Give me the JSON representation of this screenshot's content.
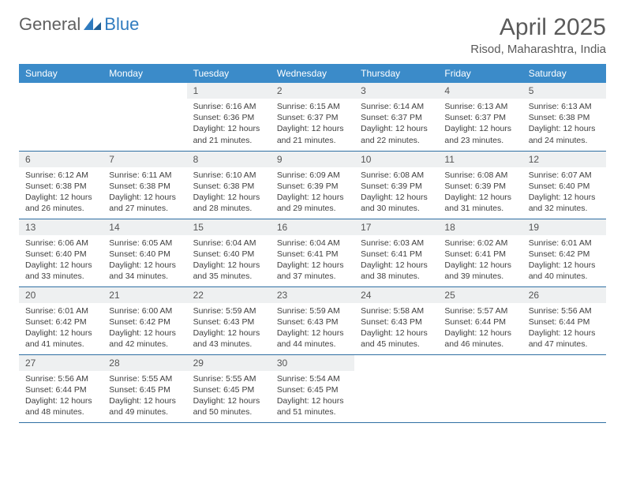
{
  "brand": {
    "part1": "General",
    "part2": "Blue"
  },
  "title": "April 2025",
  "location": "Risod, Maharashtra, India",
  "colors": {
    "header_bg": "#3b8bc9",
    "header_text": "#ffffff",
    "row_divider": "#2f6fa3",
    "daynum_bg": "#eef0f1",
    "text": "#404040",
    "title_text": "#5a5a5a",
    "logo_gray": "#606060",
    "logo_blue": "#2f7bbf",
    "page_bg": "#ffffff"
  },
  "typography": {
    "title_fontsize": 30,
    "location_fontsize": 15,
    "header_fontsize": 12,
    "daynum_fontsize": 12,
    "body_fontsize": 10.5
  },
  "weekdays": [
    "Sunday",
    "Monday",
    "Tuesday",
    "Wednesday",
    "Thursday",
    "Friday",
    "Saturday"
  ],
  "weeks": [
    [
      {
        "empty": true
      },
      {
        "empty": true
      },
      {
        "day": "1",
        "sunrise": "Sunrise: 6:16 AM",
        "sunset": "Sunset: 6:36 PM",
        "daylight1": "Daylight: 12 hours",
        "daylight2": "and 21 minutes."
      },
      {
        "day": "2",
        "sunrise": "Sunrise: 6:15 AM",
        "sunset": "Sunset: 6:37 PM",
        "daylight1": "Daylight: 12 hours",
        "daylight2": "and 21 minutes."
      },
      {
        "day": "3",
        "sunrise": "Sunrise: 6:14 AM",
        "sunset": "Sunset: 6:37 PM",
        "daylight1": "Daylight: 12 hours",
        "daylight2": "and 22 minutes."
      },
      {
        "day": "4",
        "sunrise": "Sunrise: 6:13 AM",
        "sunset": "Sunset: 6:37 PM",
        "daylight1": "Daylight: 12 hours",
        "daylight2": "and 23 minutes."
      },
      {
        "day": "5",
        "sunrise": "Sunrise: 6:13 AM",
        "sunset": "Sunset: 6:38 PM",
        "daylight1": "Daylight: 12 hours",
        "daylight2": "and 24 minutes."
      }
    ],
    [
      {
        "day": "6",
        "sunrise": "Sunrise: 6:12 AM",
        "sunset": "Sunset: 6:38 PM",
        "daylight1": "Daylight: 12 hours",
        "daylight2": "and 26 minutes."
      },
      {
        "day": "7",
        "sunrise": "Sunrise: 6:11 AM",
        "sunset": "Sunset: 6:38 PM",
        "daylight1": "Daylight: 12 hours",
        "daylight2": "and 27 minutes."
      },
      {
        "day": "8",
        "sunrise": "Sunrise: 6:10 AM",
        "sunset": "Sunset: 6:38 PM",
        "daylight1": "Daylight: 12 hours",
        "daylight2": "and 28 minutes."
      },
      {
        "day": "9",
        "sunrise": "Sunrise: 6:09 AM",
        "sunset": "Sunset: 6:39 PM",
        "daylight1": "Daylight: 12 hours",
        "daylight2": "and 29 minutes."
      },
      {
        "day": "10",
        "sunrise": "Sunrise: 6:08 AM",
        "sunset": "Sunset: 6:39 PM",
        "daylight1": "Daylight: 12 hours",
        "daylight2": "and 30 minutes."
      },
      {
        "day": "11",
        "sunrise": "Sunrise: 6:08 AM",
        "sunset": "Sunset: 6:39 PM",
        "daylight1": "Daylight: 12 hours",
        "daylight2": "and 31 minutes."
      },
      {
        "day": "12",
        "sunrise": "Sunrise: 6:07 AM",
        "sunset": "Sunset: 6:40 PM",
        "daylight1": "Daylight: 12 hours",
        "daylight2": "and 32 minutes."
      }
    ],
    [
      {
        "day": "13",
        "sunrise": "Sunrise: 6:06 AM",
        "sunset": "Sunset: 6:40 PM",
        "daylight1": "Daylight: 12 hours",
        "daylight2": "and 33 minutes."
      },
      {
        "day": "14",
        "sunrise": "Sunrise: 6:05 AM",
        "sunset": "Sunset: 6:40 PM",
        "daylight1": "Daylight: 12 hours",
        "daylight2": "and 34 minutes."
      },
      {
        "day": "15",
        "sunrise": "Sunrise: 6:04 AM",
        "sunset": "Sunset: 6:40 PM",
        "daylight1": "Daylight: 12 hours",
        "daylight2": "and 35 minutes."
      },
      {
        "day": "16",
        "sunrise": "Sunrise: 6:04 AM",
        "sunset": "Sunset: 6:41 PM",
        "daylight1": "Daylight: 12 hours",
        "daylight2": "and 37 minutes."
      },
      {
        "day": "17",
        "sunrise": "Sunrise: 6:03 AM",
        "sunset": "Sunset: 6:41 PM",
        "daylight1": "Daylight: 12 hours",
        "daylight2": "and 38 minutes."
      },
      {
        "day": "18",
        "sunrise": "Sunrise: 6:02 AM",
        "sunset": "Sunset: 6:41 PM",
        "daylight1": "Daylight: 12 hours",
        "daylight2": "and 39 minutes."
      },
      {
        "day": "19",
        "sunrise": "Sunrise: 6:01 AM",
        "sunset": "Sunset: 6:42 PM",
        "daylight1": "Daylight: 12 hours",
        "daylight2": "and 40 minutes."
      }
    ],
    [
      {
        "day": "20",
        "sunrise": "Sunrise: 6:01 AM",
        "sunset": "Sunset: 6:42 PM",
        "daylight1": "Daylight: 12 hours",
        "daylight2": "and 41 minutes."
      },
      {
        "day": "21",
        "sunrise": "Sunrise: 6:00 AM",
        "sunset": "Sunset: 6:42 PM",
        "daylight1": "Daylight: 12 hours",
        "daylight2": "and 42 minutes."
      },
      {
        "day": "22",
        "sunrise": "Sunrise: 5:59 AM",
        "sunset": "Sunset: 6:43 PM",
        "daylight1": "Daylight: 12 hours",
        "daylight2": "and 43 minutes."
      },
      {
        "day": "23",
        "sunrise": "Sunrise: 5:59 AM",
        "sunset": "Sunset: 6:43 PM",
        "daylight1": "Daylight: 12 hours",
        "daylight2": "and 44 minutes."
      },
      {
        "day": "24",
        "sunrise": "Sunrise: 5:58 AM",
        "sunset": "Sunset: 6:43 PM",
        "daylight1": "Daylight: 12 hours",
        "daylight2": "and 45 minutes."
      },
      {
        "day": "25",
        "sunrise": "Sunrise: 5:57 AM",
        "sunset": "Sunset: 6:44 PM",
        "daylight1": "Daylight: 12 hours",
        "daylight2": "and 46 minutes."
      },
      {
        "day": "26",
        "sunrise": "Sunrise: 5:56 AM",
        "sunset": "Sunset: 6:44 PM",
        "daylight1": "Daylight: 12 hours",
        "daylight2": "and 47 minutes."
      }
    ],
    [
      {
        "day": "27",
        "sunrise": "Sunrise: 5:56 AM",
        "sunset": "Sunset: 6:44 PM",
        "daylight1": "Daylight: 12 hours",
        "daylight2": "and 48 minutes."
      },
      {
        "day": "28",
        "sunrise": "Sunrise: 5:55 AM",
        "sunset": "Sunset: 6:45 PM",
        "daylight1": "Daylight: 12 hours",
        "daylight2": "and 49 minutes."
      },
      {
        "day": "29",
        "sunrise": "Sunrise: 5:55 AM",
        "sunset": "Sunset: 6:45 PM",
        "daylight1": "Daylight: 12 hours",
        "daylight2": "and 50 minutes."
      },
      {
        "day": "30",
        "sunrise": "Sunrise: 5:54 AM",
        "sunset": "Sunset: 6:45 PM",
        "daylight1": "Daylight: 12 hours",
        "daylight2": "and 51 minutes."
      },
      {
        "empty": true
      },
      {
        "empty": true
      },
      {
        "empty": true
      }
    ]
  ]
}
